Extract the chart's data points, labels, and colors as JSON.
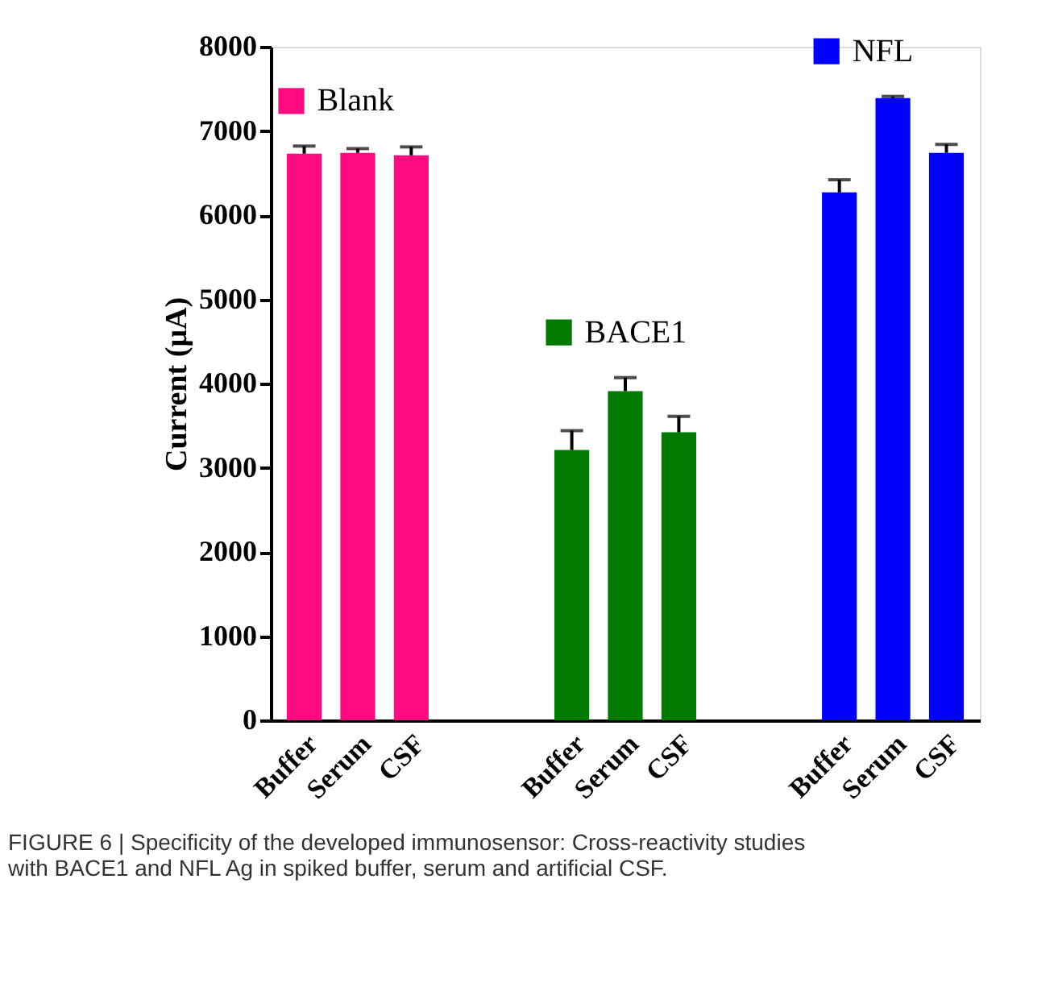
{
  "chart_data": {
    "type": "bar",
    "categories": [
      "Buffer",
      "Serum",
      "CSF",
      null,
      null,
      "Buffer",
      "Serum",
      "CSF",
      null,
      null,
      "Buffer",
      "Serum",
      "CSF"
    ],
    "ylabel": "Current (μA)",
    "ylim": [
      0,
      8000
    ],
    "yticks": [
      0,
      1000,
      2000,
      3000,
      4000,
      5000,
      6000,
      7000,
      8000
    ],
    "series": [
      {
        "name": "Blank",
        "color": "#ff0a7f",
        "values": [
          6730,
          6740,
          6710,
          null,
          null,
          null,
          null,
          null,
          null,
          null,
          null,
          null,
          null
        ],
        "errors": [
          90,
          50,
          100,
          null,
          null,
          null,
          null,
          null,
          null,
          null,
          null,
          null,
          null
        ]
      },
      {
        "name": "BACE1",
        "color": "#007b00",
        "values": [
          null,
          null,
          null,
          null,
          null,
          3210,
          3910,
          3420,
          null,
          null,
          null,
          null,
          null
        ],
        "errors": [
          null,
          null,
          null,
          null,
          null,
          230,
          160,
          190,
          null,
          null,
          null,
          null,
          null
        ]
      },
      {
        "name": "NFL",
        "color": "#0000ff",
        "values": [
          null,
          null,
          null,
          null,
          null,
          null,
          null,
          null,
          null,
          null,
          6270,
          7390,
          6740
        ],
        "errors": [
          null,
          null,
          null,
          null,
          null,
          null,
          null,
          null,
          null,
          null,
          150,
          20,
          100
        ]
      }
    ],
    "grid": false,
    "legend": "top",
    "annotations": [
      "FIGURE 6 | Specificity of the developed immunosensor: Cross-reactivity studies with BACE1 and NFL Ag in spiked buffer, serum and artificial CSF."
    ]
  }
}
